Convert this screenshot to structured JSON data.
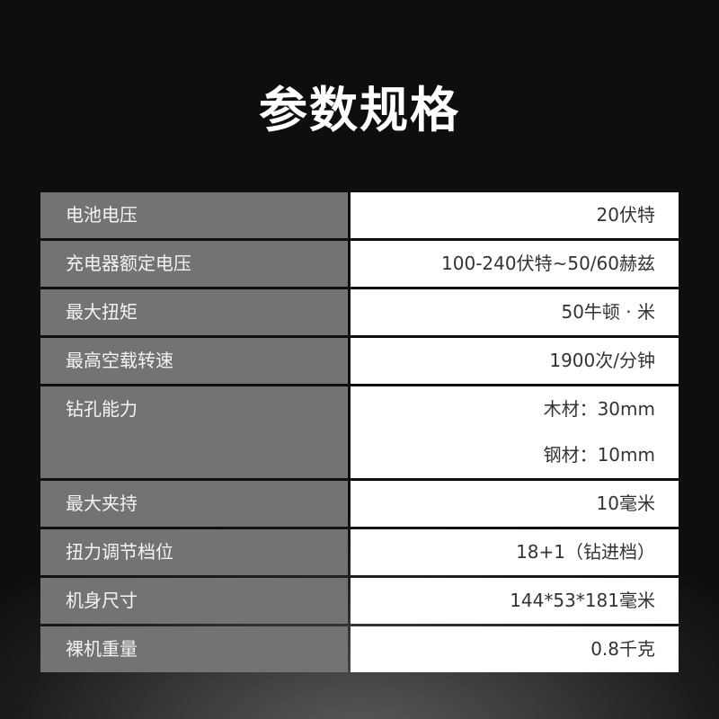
{
  "title": "参数规格",
  "specs": [
    {
      "label": "电池电压",
      "values": [
        "20伏特"
      ]
    },
    {
      "label": "充电器额定电压",
      "values": [
        "100-240伏特~50/60赫兹"
      ]
    },
    {
      "label": "最大扭矩",
      "values": [
        "50牛顿 · 米"
      ]
    },
    {
      "label": "最高空载转速",
      "values": [
        "1900次/分钟"
      ]
    },
    {
      "label": "钻孔能力",
      "values": [
        "木材：30mm",
        "钢材：10mm"
      ]
    },
    {
      "label": "最大夹持",
      "values": [
        "10毫米"
      ]
    },
    {
      "label": "扭力调节档位",
      "values": [
        "18+1（钻进档）"
      ]
    },
    {
      "label": "机身尺寸",
      "values": [
        "144*53*181毫米"
      ]
    },
    {
      "label": "裸机重量",
      "values": [
        "0.8千克"
      ]
    }
  ]
}
